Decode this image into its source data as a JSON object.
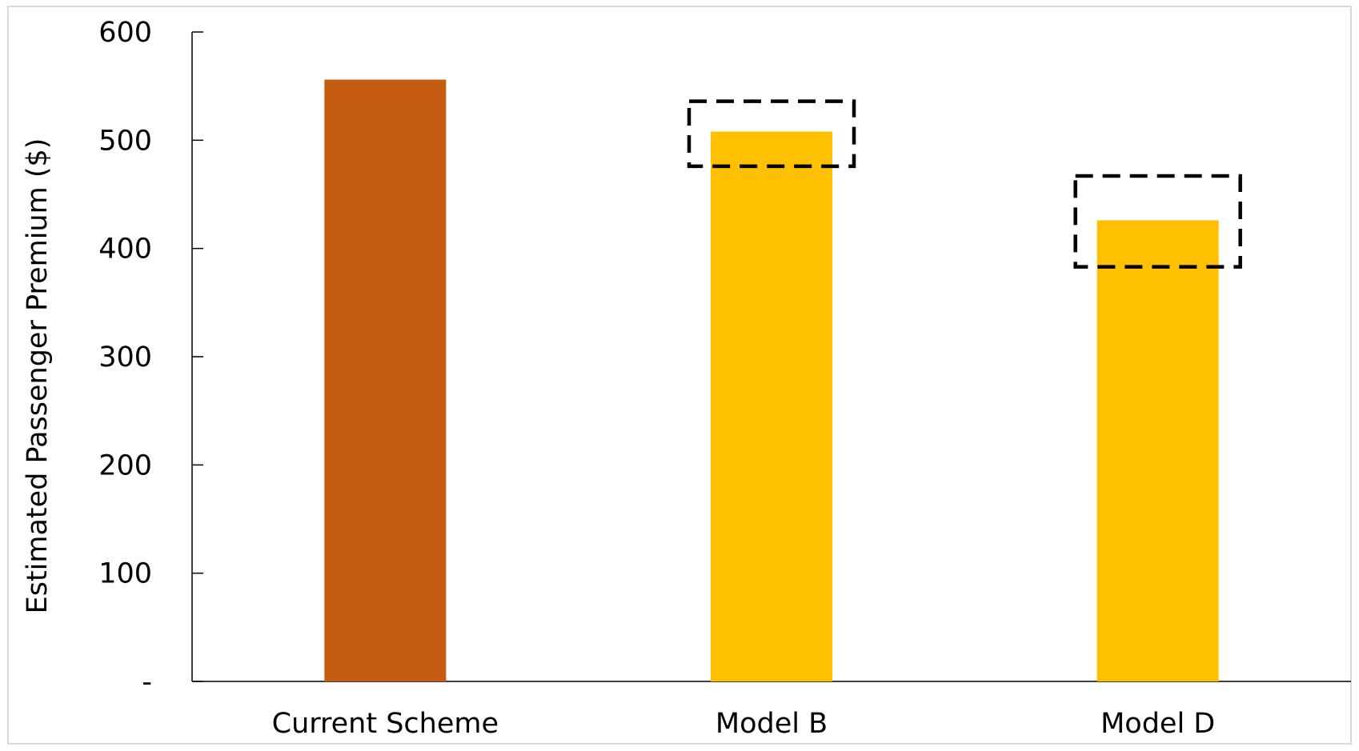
{
  "chart_data": {
    "type": "bar",
    "title": "",
    "xlabel": "",
    "ylabel": "Estimated Passenger Premium ($)",
    "ylim": [
      0,
      600
    ],
    "yticks": [
      {
        "value": 0,
        "label": "-"
      },
      {
        "value": 100,
        "label": "100"
      },
      {
        "value": 200,
        "label": "200"
      },
      {
        "value": 300,
        "label": "300"
      },
      {
        "value": 400,
        "label": "400"
      },
      {
        "value": 500,
        "label": "500"
      },
      {
        "value": 600,
        "label": "600"
      }
    ],
    "categories": [
      "Current Scheme",
      "Model B",
      "Model D"
    ],
    "values": [
      556,
      508,
      426
    ],
    "colors": [
      "#C55A11",
      "#FFC000",
      "#FFC000"
    ],
    "uncertainty_ranges": [
      null,
      {
        "low": 476,
        "high": 536
      },
      {
        "low": 383,
        "high": 467
      }
    ],
    "range_style": "dashed-box",
    "grid": false,
    "legend": "none"
  }
}
